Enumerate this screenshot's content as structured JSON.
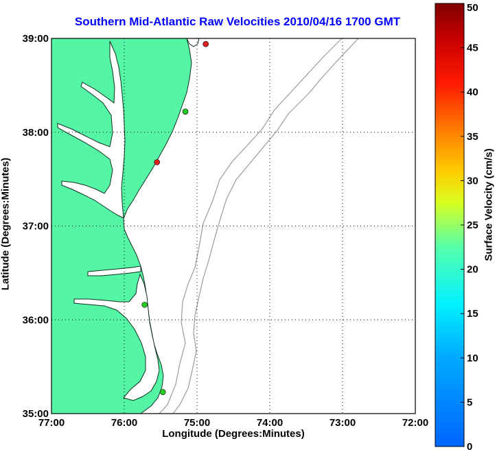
{
  "map": {
    "title": "Southern Mid-Atlantic Raw Velocities 2010/04/16 1700 GMT",
    "x_label": "Longitude (Degrees:Minutes)",
    "y_label": "Latitude (Degrees:Minutes)",
    "x_ticks": [
      "77:00",
      "76:00",
      "75:00",
      "74:00",
      "73:00",
      "72:00"
    ],
    "y_ticks": [
      "39:00",
      "38:00",
      "37:00",
      "36:00",
      "35:00"
    ],
    "lon_range": [
      -77,
      -72
    ],
    "lat_range": [
      35,
      39
    ],
    "grid": "dotted",
    "land_color": "#54f5a5",
    "bathymetry_color": "#9a9a9a"
  },
  "colorbar": {
    "label": "Surface Velocity (cm/s)",
    "ticks": [
      "0",
      "5",
      "10",
      "15",
      "20",
      "25",
      "30",
      "35",
      "40",
      "45",
      "50"
    ],
    "range": [
      0,
      50
    ],
    "colormap": "jet"
  },
  "stations": [
    {
      "lon": -74.88,
      "lat": 38.94,
      "color": "#e02020"
    },
    {
      "lon": -75.16,
      "lat": 38.22,
      "color": "#22cc22"
    },
    {
      "lon": -75.55,
      "lat": 37.68,
      "color": "#e02020"
    },
    {
      "lon": -75.72,
      "lat": 36.16,
      "color": "#22cc22"
    },
    {
      "lon": -75.47,
      "lat": 35.23,
      "color": "#22cc22"
    }
  ]
}
